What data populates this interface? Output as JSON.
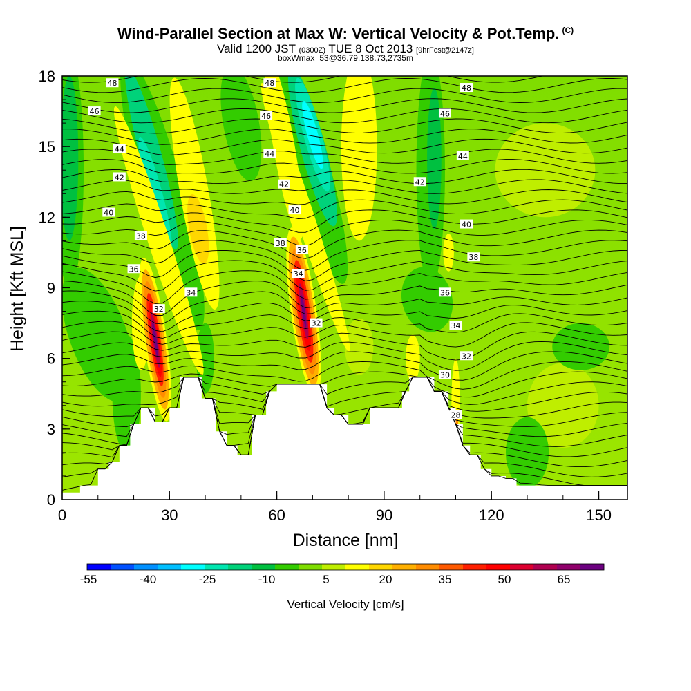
{
  "header": {
    "title": "Wind-Parallel Section at Max W: Vertical Velocity & Pot.Temp.",
    "title_tag": "(C)",
    "valid_main": "Valid 1200 JST",
    "valid_utc": "(0300Z)",
    "valid_date": "TUE 8 Oct 2013",
    "valid_fcst": "[9hrFcst@2147z]",
    "boxw": "boxWmax=53@36.79,138.73,2735m"
  },
  "chart_data": {
    "type": "heatmap",
    "xlabel": "Distance [nm]",
    "ylabel": "Height [Kft MSL]",
    "xlim": [
      0,
      158
    ],
    "ylim": [
      0,
      18
    ],
    "x_ticks": [
      0,
      30,
      60,
      90,
      120,
      150
    ],
    "y_ticks": [
      0,
      3,
      6,
      9,
      12,
      15,
      18
    ],
    "colorbar": {
      "label": "Vertical Velocity [cm/s]",
      "tick_labels": [
        "-55",
        "-40",
        "-25",
        "-10",
        "5",
        "20",
        "35",
        "50",
        "65"
      ],
      "colors": [
        "#0000ff",
        "#0050ff",
        "#0090ff",
        "#00bfff",
        "#00ffff",
        "#00e6b0",
        "#00d27a",
        "#00c040",
        "#33cc00",
        "#7fdd00",
        "#bfee00",
        "#ffff00",
        "#ffd700",
        "#ffb000",
        "#ff8c00",
        "#ff5a00",
        "#ff2000",
        "#ff0000",
        "#dd0030",
        "#b00050",
        "#90006b",
        "#6c0080"
      ]
    },
    "terrain": [
      [
        0,
        0.3
      ],
      [
        5,
        0.6
      ],
      [
        10,
        1.3
      ],
      [
        13,
        1.6
      ],
      [
        16,
        2.3
      ],
      [
        19,
        3.2
      ],
      [
        22,
        3.9
      ],
      [
        25,
        3.9
      ],
      [
        26,
        3.3
      ],
      [
        28,
        3.3
      ],
      [
        30,
        3.9
      ],
      [
        33,
        5.2
      ],
      [
        38,
        5.2
      ],
      [
        39,
        4.3
      ],
      [
        42,
        4.3
      ],
      [
        43,
        2.9
      ],
      [
        46,
        2.3
      ],
      [
        49,
        1.9
      ],
      [
        52,
        1.9
      ],
      [
        53,
        3.6
      ],
      [
        56,
        3.6
      ],
      [
        57,
        4.6
      ],
      [
        60,
        4.9
      ],
      [
        66,
        4.9
      ],
      [
        68,
        4.9
      ],
      [
        72,
        4.9
      ],
      [
        74,
        3.9
      ],
      [
        76,
        3.6
      ],
      [
        78,
        3.6
      ],
      [
        80,
        3.2
      ],
      [
        84,
        3.2
      ],
      [
        86,
        3.9
      ],
      [
        93,
        3.9
      ],
      [
        95,
        4.6
      ],
      [
        97,
        5.2
      ],
      [
        101,
        5.2
      ],
      [
        104,
        4.6
      ],
      [
        108,
        3.9
      ],
      [
        110,
        3.2
      ],
      [
        112,
        2.3
      ],
      [
        114,
        1.9
      ],
      [
        117,
        1.3
      ],
      [
        120,
        1.0
      ],
      [
        124,
        0.9
      ],
      [
        127,
        0.6
      ],
      [
        158,
        0.6
      ]
    ],
    "theta_contours": [
      {
        "level": "28",
        "label_xy": [
          110,
          3.6
        ]
      },
      {
        "level": "30",
        "label_xy": [
          107,
          5.3
        ]
      },
      {
        "level": "32",
        "labels": [
          [
            27,
            8.1
          ],
          [
            71,
            7.5
          ],
          [
            113,
            6.1
          ]
        ]
      },
      {
        "level": "34",
        "labels": [
          [
            36,
            8.8
          ],
          [
            66,
            9.6
          ],
          [
            110,
            7.4
          ]
        ]
      },
      {
        "level": "36",
        "labels": [
          [
            20,
            9.8
          ],
          [
            67,
            10.6
          ],
          [
            107,
            8.8
          ]
        ]
      },
      {
        "level": "38",
        "labels": [
          [
            22,
            11.2
          ],
          [
            61,
            10.9
          ],
          [
            115,
            10.3
          ]
        ]
      },
      {
        "level": "40",
        "labels": [
          [
            13,
            12.2
          ],
          [
            65,
            12.3
          ],
          [
            113,
            11.7
          ]
        ]
      },
      {
        "level": "42",
        "labels": [
          [
            16,
            13.7
          ],
          [
            62,
            13.4
          ],
          [
            100,
            13.5
          ]
        ]
      },
      {
        "level": "44",
        "labels": [
          [
            16,
            14.9
          ],
          [
            58,
            14.7
          ],
          [
            112,
            14.6
          ]
        ]
      },
      {
        "level": "46",
        "labels": [
          [
            9,
            16.5
          ],
          [
            57,
            16.3
          ],
          [
            107,
            16.4
          ]
        ]
      },
      {
        "level": "48",
        "labels": [
          [
            14,
            17.7
          ],
          [
            58,
            17.7
          ],
          [
            113,
            17.5
          ]
        ]
      }
    ]
  }
}
